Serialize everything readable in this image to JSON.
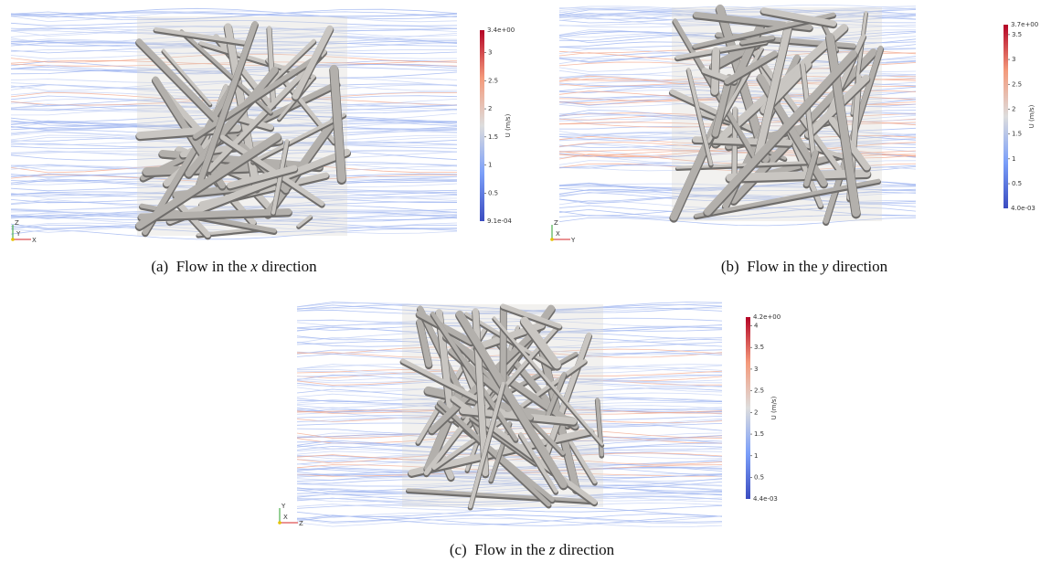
{
  "panels": [
    {
      "caption": {
        "label": "(a)",
        "text": "Flow in the",
        "axis": "x",
        "suffix": "direction"
      },
      "colorbar": {
        "title": "U (m/s)",
        "min": {
          "value": 0.00091,
          "label": "9.1e-04"
        },
        "max": {
          "value": 3.4,
          "label": "3.4e+00"
        },
        "ticks": [
          0.5,
          1,
          1.5,
          2,
          2.5,
          3
        ]
      },
      "triad": [
        "Z",
        "Y",
        "X"
      ]
    },
    {
      "caption": {
        "label": "(b)",
        "text": "Flow in the",
        "axis": "y",
        "suffix": "direction"
      },
      "colorbar": {
        "title": "U (m/s)",
        "min": {
          "value": 0.004,
          "label": "4.0e-03"
        },
        "max": {
          "value": 3.7,
          "label": "3.7e+00"
        },
        "ticks": [
          0.5,
          1,
          1.5,
          2,
          2.5,
          3,
          3.5
        ]
      },
      "triad": [
        "Z",
        "X",
        "Y"
      ]
    },
    {
      "caption": {
        "label": "(c)",
        "text": "Flow in the",
        "axis": "z",
        "suffix": "direction"
      },
      "colorbar": {
        "title": "U (m/s)",
        "min": {
          "value": 0.0044,
          "label": "4.4e-03"
        },
        "max": {
          "value": 4.2,
          "label": "4.2e+00"
        },
        "ticks": [
          0.5,
          1,
          1.5,
          2,
          2.5,
          3,
          3.5,
          4
        ]
      },
      "triad": [
        "Y",
        "X",
        "Z"
      ]
    }
  ]
}
